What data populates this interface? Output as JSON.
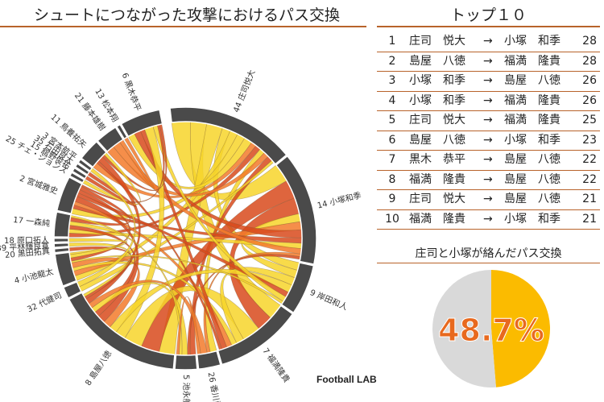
{
  "header": {
    "chart_title": "シュートにつながった攻撃におけるパス交換",
    "ranking_title": "トップ１０"
  },
  "top10": [
    {
      "rank": "1",
      "from": "庄司　悦大",
      "arrow": "→",
      "to": "小塚　和季",
      "count": "28"
    },
    {
      "rank": "2",
      "from": "島屋　八徳",
      "arrow": "→",
      "to": "福満　隆貴",
      "count": "28"
    },
    {
      "rank": "3",
      "from": "小塚　和季",
      "arrow": "→",
      "to": "島屋　八徳",
      "count": "26"
    },
    {
      "rank": "4",
      "from": "小塚　和季",
      "arrow": "→",
      "to": "福満　隆貴",
      "count": "26"
    },
    {
      "rank": "5",
      "from": "庄司　悦大",
      "arrow": "→",
      "to": "福満　隆貴",
      "count": "25"
    },
    {
      "rank": "6",
      "from": "島屋　八徳",
      "arrow": "→",
      "to": "小塚　和季",
      "count": "23"
    },
    {
      "rank": "7",
      "from": "黒木　恭平",
      "arrow": "→",
      "to": "島屋　八徳",
      "count": "22"
    },
    {
      "rank": "8",
      "from": "福満　隆貴",
      "arrow": "→",
      "to": "島屋　八徳",
      "count": "22"
    },
    {
      "rank": "9",
      "from": "庄司　悦大",
      "arrow": "→",
      "to": "島屋　八徳",
      "count": "21"
    },
    {
      "rank": "10",
      "from": "福満　隆貴",
      "arrow": "→",
      "to": "小塚　和季",
      "count": "21"
    }
  ],
  "share": {
    "title": "庄司と小塚が絡んだパス交換",
    "label": "48.7%"
  },
  "credit": "Football LAB",
  "colors": {
    "accent": "#b8632b",
    "ring": "#4a4a4a",
    "chord_yellow": "#f7d52a",
    "chord_orange": "#f37a2a",
    "chord_red": "#d84a1c",
    "pie_fill": "#fbbb00",
    "pie_rest": "#d9d9d9",
    "pie_text": "#e8691e"
  },
  "chart_data": [
    {
      "type": "chord",
      "nodes": [
        {
          "label": "44 庄司悦大",
          "span": 50
        },
        {
          "label": "14 小塚和季",
          "span": 44
        },
        {
          "label": "9 岸田和人",
          "span": 20
        },
        {
          "label": "7 福満隆貴",
          "span": 34
        },
        {
          "label": "26 香川勇気",
          "span": 9
        },
        {
          "label": "5 池永航",
          "span": 9
        },
        {
          "label": "8 島屋八徳",
          "span": 50
        },
        {
          "label": "32 代健司",
          "span": 5
        },
        {
          "label": "4 小池龍太",
          "span": 13
        },
        {
          "label": "20 黒田拓真",
          "span": 2
        },
        {
          "label": "39 平林輝良寛",
          "span": 2
        },
        {
          "label": "18 原口拓人",
          "span": 2
        },
        {
          "label": "17 一森純",
          "span": 10
        },
        {
          "label": "2 宮城雅史",
          "span": 14
        },
        {
          "label": "25 チェ・ジョンス",
          "span": 2
        },
        {
          "label": "15 舘野俊祐",
          "span": 2
        },
        {
          "label": "35 石田良太",
          "span": 2
        },
        {
          "label": "3 宮本航平",
          "span": 2
        },
        {
          "label": "11 鳥養祐矢",
          "span": 9
        },
        {
          "label": "21 藤本雄樹",
          "span": 9
        },
        {
          "label": "13 松本翔",
          "span": 2
        },
        {
          "label": "6 黒木恭平",
          "span": 16
        }
      ],
      "links": [
        {
          "a": 0,
          "b": 1,
          "w": 7
        },
        {
          "a": 0,
          "b": 3,
          "w": 6
        },
        {
          "a": 0,
          "b": 6,
          "w": 6
        },
        {
          "a": 0,
          "b": 2,
          "w": 3
        },
        {
          "a": 0,
          "b": 8,
          "w": 3
        },
        {
          "a": 0,
          "b": 13,
          "w": 3
        },
        {
          "a": 0,
          "b": 21,
          "w": 3
        },
        {
          "a": 0,
          "b": 18,
          "w": 2
        },
        {
          "a": 0,
          "b": 12,
          "w": 2
        },
        {
          "a": 0,
          "b": 4,
          "w": 2
        },
        {
          "a": 0,
          "b": 19,
          "w": 2
        },
        {
          "a": 0,
          "b": 5,
          "w": 2
        },
        {
          "a": 0,
          "b": 7,
          "w": 1
        },
        {
          "a": 1,
          "b": 6,
          "w": 7
        },
        {
          "a": 1,
          "b": 3,
          "w": 6
        },
        {
          "a": 1,
          "b": 2,
          "w": 3
        },
        {
          "a": 1,
          "b": 8,
          "w": 3
        },
        {
          "a": 1,
          "b": 21,
          "w": 3
        },
        {
          "a": 1,
          "b": 13,
          "w": 2
        },
        {
          "a": 1,
          "b": 12,
          "w": 2
        },
        {
          "a": 1,
          "b": 19,
          "w": 2
        },
        {
          "a": 1,
          "b": 4,
          "w": 1
        },
        {
          "a": 1,
          "b": 5,
          "w": 1
        },
        {
          "a": 3,
          "b": 6,
          "w": 7
        },
        {
          "a": 3,
          "b": 2,
          "w": 3
        },
        {
          "a": 3,
          "b": 8,
          "w": 2
        },
        {
          "a": 3,
          "b": 13,
          "w": 2
        },
        {
          "a": 3,
          "b": 21,
          "w": 2
        },
        {
          "a": 3,
          "b": 18,
          "w": 1
        },
        {
          "a": 6,
          "b": 21,
          "w": 4
        },
        {
          "a": 6,
          "b": 2,
          "w": 3
        },
        {
          "a": 6,
          "b": 8,
          "w": 3
        },
        {
          "a": 6,
          "b": 13,
          "w": 3
        },
        {
          "a": 6,
          "b": 12,
          "w": 2
        },
        {
          "a": 6,
          "b": 5,
          "w": 2
        },
        {
          "a": 6,
          "b": 4,
          "w": 2
        },
        {
          "a": 6,
          "b": 18,
          "w": 2
        },
        {
          "a": 6,
          "b": 9,
          "w": 1
        },
        {
          "a": 6,
          "b": 10,
          "w": 1
        },
        {
          "a": 2,
          "b": 13,
          "w": 2
        },
        {
          "a": 2,
          "b": 21,
          "w": 2
        },
        {
          "a": 2,
          "b": 8,
          "w": 1
        },
        {
          "a": 8,
          "b": 13,
          "w": 2
        },
        {
          "a": 8,
          "b": 12,
          "w": 2
        },
        {
          "a": 8,
          "b": 11,
          "w": 1
        },
        {
          "a": 13,
          "b": 12,
          "w": 2
        },
        {
          "a": 13,
          "b": 21,
          "w": 1
        },
        {
          "a": 12,
          "b": 5,
          "w": 1
        },
        {
          "a": 4,
          "b": 5,
          "w": 1
        },
        {
          "a": 21,
          "b": 18,
          "w": 1
        },
        {
          "a": 18,
          "b": 14,
          "w": 1
        },
        {
          "a": 19,
          "b": 20,
          "w": 1
        },
        {
          "a": 15,
          "b": 16,
          "w": 1
        },
        {
          "a": 17,
          "b": 7,
          "w": 1
        }
      ]
    },
    {
      "type": "pie",
      "values": [
        48.7,
        51.3
      ],
      "data_label": "48.7%"
    }
  ]
}
